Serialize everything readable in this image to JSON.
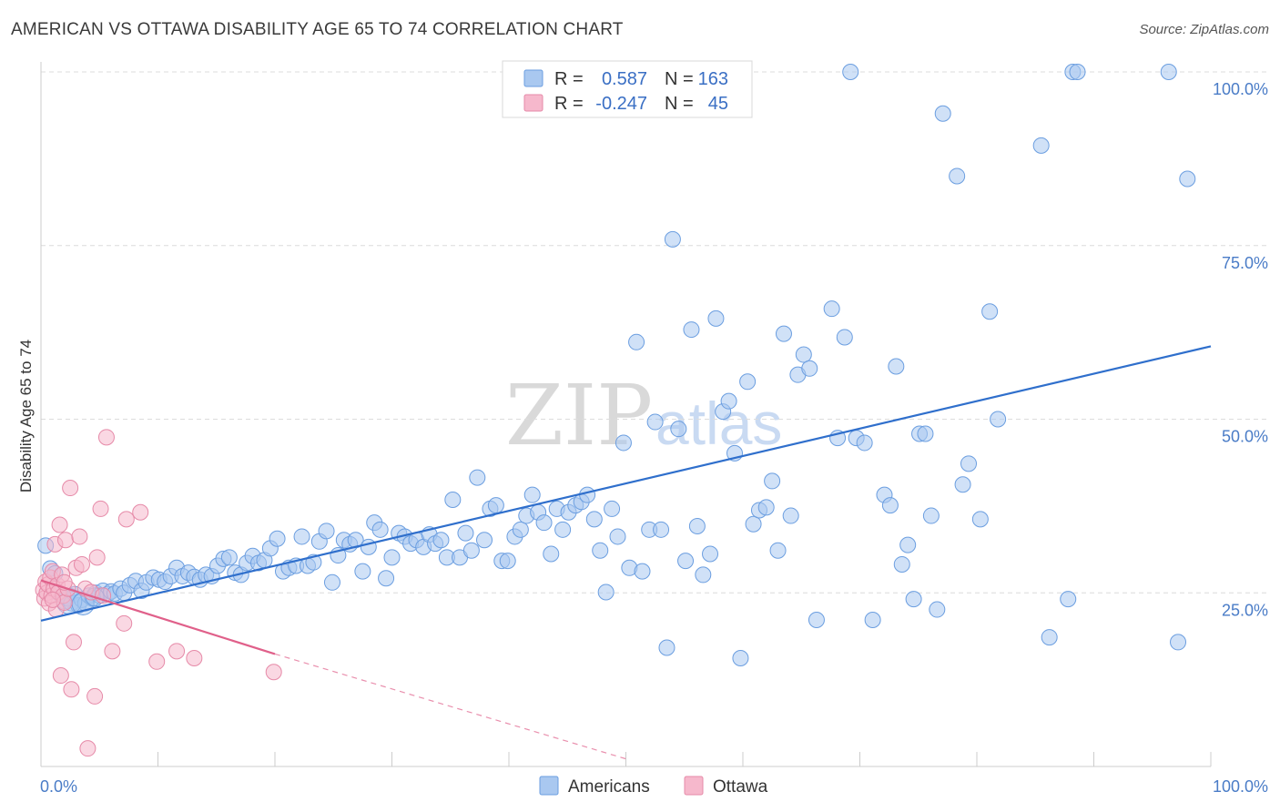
{
  "title": "AMERICAN VS OTTAWA DISABILITY AGE 65 TO 74 CORRELATION CHART",
  "source": "Source: ZipAtlas.com",
  "watermark": {
    "zip": "ZIP",
    "atlas": "atlas"
  },
  "colors": {
    "americans_fill": "#a9c8f0",
    "americans_stroke": "#6b9ee0",
    "americans_line": "#2f6fcc",
    "ottawa_fill": "#f6b8cc",
    "ottawa_stroke": "#e68aa8",
    "ottawa_line": "#e0608a",
    "tick_text": "#4a7cc7",
    "grid": "#dcdcdc"
  },
  "legend": {
    "r_label": "R =",
    "n_label": "N =",
    "rows": [
      {
        "series": "Americans",
        "r": "0.587",
        "n": "163"
      },
      {
        "series": "Ottawa",
        "r": "-0.247",
        "n": "45"
      }
    ]
  },
  "chart_data": {
    "type": "scatter",
    "title": "AMERICAN VS OTTAWA DISABILITY AGE 65 TO 74 CORRELATION CHART",
    "xlabel": "",
    "ylabel": "Disability Age 65 to 74",
    "xlim": [
      0,
      100
    ],
    "ylim": [
      0,
      100
    ],
    "x_tick_labels": [
      "0.0%",
      "100.0%"
    ],
    "y_ticks": [
      25,
      50,
      75,
      100
    ],
    "y_tick_labels": [
      "25.0%",
      "50.0%",
      "75.0%",
      "100.0%"
    ],
    "grid": true,
    "legend_position": "top-center",
    "series": [
      {
        "name": "Americans",
        "r": 0.587,
        "n": 163,
        "trend": {
          "x0": 0,
          "y0": 21,
          "x1": 100,
          "y1": 60.5
        },
        "points": [
          [
            0.4,
            31.8
          ],
          [
            0.8,
            28.5
          ],
          [
            1.2,
            27.8
          ],
          [
            1.5,
            25.0
          ],
          [
            1.8,
            24.5
          ],
          [
            2.0,
            23.8
          ],
          [
            2.3,
            24.2
          ],
          [
            2.6,
            23.5
          ],
          [
            2.9,
            24.8
          ],
          [
            3.2,
            23.2
          ],
          [
            3.5,
            24.0
          ],
          [
            3.8,
            23.5
          ],
          [
            4.1,
            24.6
          ],
          [
            4.4,
            24.2
          ],
          [
            4.7,
            25.0
          ],
          [
            5.0,
            24.6
          ],
          [
            5.3,
            25.3
          ],
          [
            5.7,
            24.8
          ],
          [
            6.0,
            25.2
          ],
          [
            6.3,
            24.9
          ],
          [
            6.8,
            25.6
          ],
          [
            7.1,
            25.0
          ],
          [
            7.6,
            26.1
          ],
          [
            8.1,
            26.7
          ],
          [
            8.6,
            25.3
          ],
          [
            9.0,
            26.5
          ],
          [
            9.6,
            27.2
          ],
          [
            10.1,
            26.9
          ],
          [
            10.6,
            26.6
          ],
          [
            11.1,
            27.4
          ],
          [
            11.6,
            28.6
          ],
          [
            12.1,
            27.4
          ],
          [
            12.6,
            27.9
          ],
          [
            13.1,
            27.3
          ],
          [
            13.6,
            26.9
          ],
          [
            14.1,
            27.6
          ],
          [
            14.6,
            27.4
          ],
          [
            15.1,
            28.9
          ],
          [
            15.6,
            29.9
          ],
          [
            16.1,
            30.1
          ],
          [
            16.6,
            27.9
          ],
          [
            17.1,
            27.6
          ],
          [
            17.6,
            29.3
          ],
          [
            18.1,
            30.3
          ],
          [
            18.6,
            29.3
          ],
          [
            19.1,
            29.7
          ],
          [
            19.6,
            31.4
          ],
          [
            20.2,
            32.8
          ],
          [
            20.7,
            28.1
          ],
          [
            21.2,
            28.6
          ],
          [
            21.8,
            28.9
          ],
          [
            22.3,
            33.1
          ],
          [
            22.8,
            28.9
          ],
          [
            23.3,
            29.4
          ],
          [
            23.8,
            32.4
          ],
          [
            24.4,
            33.9
          ],
          [
            24.9,
            26.5
          ],
          [
            25.4,
            30.4
          ],
          [
            25.9,
            32.6
          ],
          [
            26.4,
            32.0
          ],
          [
            26.9,
            32.6
          ],
          [
            27.5,
            28.1
          ],
          [
            28.0,
            31.6
          ],
          [
            28.5,
            35.1
          ],
          [
            29.0,
            34.1
          ],
          [
            29.5,
            27.1
          ],
          [
            30.0,
            30.1
          ],
          [
            30.6,
            33.6
          ],
          [
            31.1,
            33.1
          ],
          [
            31.6,
            32.1
          ],
          [
            32.1,
            32.6
          ],
          [
            32.7,
            31.6
          ],
          [
            33.2,
            33.4
          ],
          [
            33.7,
            32.1
          ],
          [
            34.2,
            32.6
          ],
          [
            34.7,
            30.1
          ],
          [
            35.2,
            38.4
          ],
          [
            35.8,
            30.1
          ],
          [
            36.3,
            33.6
          ],
          [
            36.8,
            31.1
          ],
          [
            37.3,
            41.6
          ],
          [
            37.9,
            32.6
          ],
          [
            38.4,
            37.1
          ],
          [
            38.9,
            37.6
          ],
          [
            39.4,
            29.6
          ],
          [
            39.9,
            29.6
          ],
          [
            40.5,
            33.1
          ],
          [
            41.0,
            34.1
          ],
          [
            41.5,
            36.1
          ],
          [
            42.0,
            39.1
          ],
          [
            42.5,
            36.6
          ],
          [
            43.0,
            35.1
          ],
          [
            43.6,
            30.6
          ],
          [
            44.1,
            37.1
          ],
          [
            44.6,
            34.1
          ],
          [
            45.1,
            36.6
          ],
          [
            45.7,
            37.6
          ],
          [
            46.2,
            38.1
          ],
          [
            46.7,
            39.1
          ],
          [
            47.3,
            35.6
          ],
          [
            47.8,
            31.1
          ],
          [
            48.3,
            25.1
          ],
          [
            48.8,
            37.1
          ],
          [
            49.3,
            33.1
          ],
          [
            49.8,
            46.6
          ],
          [
            50.3,
            28.6
          ],
          [
            50.9,
            61.1
          ],
          [
            51.4,
            28.1
          ],
          [
            52.0,
            34.1
          ],
          [
            52.5,
            49.6
          ],
          [
            53.0,
            34.1
          ],
          [
            53.5,
            17.1
          ],
          [
            54.0,
            75.9
          ],
          [
            54.5,
            48.6
          ],
          [
            55.1,
            29.6
          ],
          [
            55.6,
            62.9
          ],
          [
            56.1,
            34.6
          ],
          [
            56.6,
            27.6
          ],
          [
            57.2,
            30.6
          ],
          [
            57.7,
            64.5
          ],
          [
            58.3,
            51.1
          ],
          [
            58.8,
            52.6
          ],
          [
            59.3,
            45.1
          ],
          [
            59.8,
            15.6
          ],
          [
            60.4,
            55.4
          ],
          [
            60.9,
            34.9
          ],
          [
            61.4,
            36.9
          ],
          [
            62.0,
            37.3
          ],
          [
            62.5,
            41.1
          ],
          [
            63.0,
            31.1
          ],
          [
            63.5,
            62.3
          ],
          [
            64.1,
            36.1
          ],
          [
            64.7,
            56.4
          ],
          [
            65.2,
            59.3
          ],
          [
            65.7,
            57.3
          ],
          [
            66.3,
            21.1
          ],
          [
            67.6,
            65.9
          ],
          [
            68.1,
            47.3
          ],
          [
            68.7,
            61.8
          ],
          [
            69.2,
            100.0
          ],
          [
            69.7,
            47.3
          ],
          [
            70.4,
            46.6
          ],
          [
            71.1,
            21.1
          ],
          [
            72.1,
            39.1
          ],
          [
            72.6,
            37.6
          ],
          [
            73.1,
            57.6
          ],
          [
            73.6,
            29.1
          ],
          [
            74.1,
            31.9
          ],
          [
            74.6,
            24.1
          ],
          [
            75.1,
            47.9
          ],
          [
            75.6,
            47.9
          ],
          [
            76.1,
            36.1
          ],
          [
            76.6,
            22.6
          ],
          [
            77.1,
            94.0
          ],
          [
            78.3,
            85.0
          ],
          [
            78.8,
            40.6
          ],
          [
            79.3,
            43.6
          ],
          [
            80.3,
            35.6
          ],
          [
            81.1,
            65.5
          ],
          [
            81.8,
            50.0
          ],
          [
            85.5,
            89.4
          ],
          [
            86.2,
            18.6
          ],
          [
            87.8,
            24.1
          ],
          [
            88.2,
            100.0
          ],
          [
            88.6,
            100.0
          ],
          [
            96.4,
            100.0
          ],
          [
            97.2,
            17.9
          ],
          [
            98.0,
            84.6
          ]
        ]
      },
      {
        "name": "Ottawa",
        "r": -0.247,
        "n": 45,
        "trend": {
          "x0": 0,
          "y0": 26.8,
          "x1": 20,
          "y1": 16.2,
          "dash_x1": 50,
          "dash_y1": 1.1
        },
        "points": [
          [
            0.2,
            25.4
          ],
          [
            0.3,
            24.2
          ],
          [
            0.4,
            26.6
          ],
          [
            0.5,
            25.0
          ],
          [
            0.6,
            26.2
          ],
          [
            0.7,
            23.5
          ],
          [
            0.8,
            27.2
          ],
          [
            0.9,
            24.6
          ],
          [
            1.0,
            28.1
          ],
          [
            1.1,
            25.6
          ],
          [
            1.2,
            32.0
          ],
          [
            1.3,
            22.6
          ],
          [
            1.4,
            26.1
          ],
          [
            1.5,
            25.1
          ],
          [
            1.6,
            34.8
          ],
          [
            1.7,
            13.1
          ],
          [
            1.8,
            27.6
          ],
          [
            1.9,
            24.6
          ],
          [
            2.0,
            23.6
          ],
          [
            2.1,
            32.6
          ],
          [
            2.3,
            25.6
          ],
          [
            2.5,
            40.1
          ],
          [
            2.6,
            11.1
          ],
          [
            2.8,
            17.9
          ],
          [
            3.0,
            28.6
          ],
          [
            3.3,
            33.1
          ],
          [
            3.5,
            29.1
          ],
          [
            3.8,
            25.6
          ],
          [
            4.0,
            2.6
          ],
          [
            4.3,
            25.1
          ],
          [
            4.6,
            10.1
          ],
          [
            4.8,
            30.1
          ],
          [
            5.1,
            37.1
          ],
          [
            5.3,
            24.6
          ],
          [
            5.6,
            47.4
          ],
          [
            6.1,
            16.6
          ],
          [
            7.1,
            20.6
          ],
          [
            7.3,
            35.6
          ],
          [
            8.5,
            36.6
          ],
          [
            9.9,
            15.1
          ],
          [
            11.6,
            16.6
          ],
          [
            13.1,
            15.6
          ],
          [
            19.9,
            13.6
          ],
          [
            1.0,
            24.0
          ],
          [
            2.0,
            26.5
          ]
        ]
      }
    ]
  }
}
